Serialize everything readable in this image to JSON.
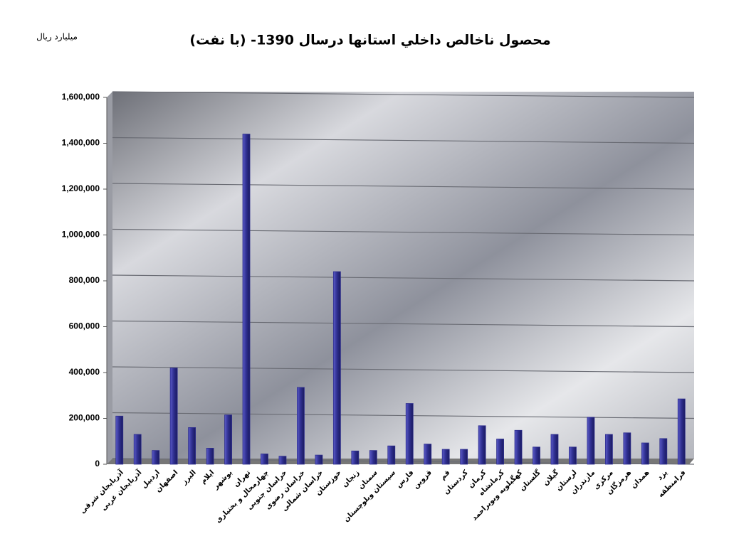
{
  "chart_data": {
    "type": "bar",
    "title": "محصول ناخالص داخلي استانها درسال 1390- (با نفت)",
    "unit_label": "ميليارد ريال",
    "categories": [
      "آذربایجان شرقی",
      "آذربایجان غربی",
      "اردبیل",
      "اصفهان",
      "البرز",
      "ایلام",
      "بوشهر",
      "تهران",
      "چهارمحال و بختیاری",
      "خراسان جنوبی",
      "خراسان رضوی",
      "خراسان شمالی",
      "خوزستان",
      "زنجان",
      "سمنان",
      "سیستان وبلوچستان",
      "فارس",
      "قزوین",
      "قم",
      "کردستان",
      "کرمان",
      "کرمانشاه",
      "کهگیلویه وبویراحمد",
      "گلستان",
      "گیلان",
      "لرستان",
      "مازندران",
      "مرکزی",
      "هرمزگان",
      "همدان",
      "یزد",
      "فرامنطقه"
    ],
    "values": [
      210000,
      130000,
      60000,
      420000,
      160000,
      70000,
      215000,
      1440000,
      45000,
      35000,
      335000,
      40000,
      840000,
      58000,
      60000,
      80000,
      265000,
      88000,
      65000,
      65000,
      168000,
      110000,
      148000,
      75000,
      130000,
      75000,
      205000,
      130000,
      137000,
      93000,
      112000,
      285000
    ],
    "color": "#2e2e8e",
    "ylim": [
      0,
      1600000
    ],
    "yticks": [
      0,
      {
        "value": 200000,
        "label": "200,000"
      },
      {
        "value": 400000,
        "label": "400,000"
      },
      {
        "value": 600000,
        "label": "600,000"
      },
      {
        "value": 800000,
        "label": "800,000"
      },
      {
        "value": 1000000,
        "label": "1,000,000"
      },
      {
        "value": 1200000,
        "label": "1,200,000"
      },
      {
        "value": 1400000,
        "label": "1,400,000"
      },
      {
        "value": 1600000,
        "label": "1,600,000"
      }
    ],
    "grid": true
  }
}
